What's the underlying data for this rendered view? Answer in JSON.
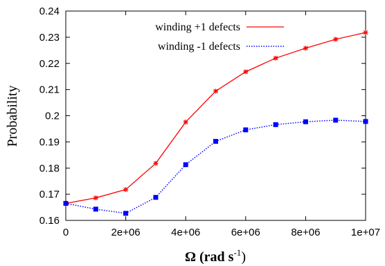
{
  "chart_data": {
    "type": "line",
    "xlabel": "Ω (rad s",
    "xlabel_superscript": "-1",
    "xlabel_suffix": ")",
    "ylabel": "Probability",
    "xlim": [
      0,
      10000000
    ],
    "ylim": [
      0.16,
      0.24
    ],
    "x_ticks": [
      {
        "value": 0,
        "label": "0"
      },
      {
        "value": 2000000,
        "label": "2e+06"
      },
      {
        "value": 4000000,
        "label": "4e+06"
      },
      {
        "value": 6000000,
        "label": "6e+06"
      },
      {
        "value": 8000000,
        "label": "8e+06"
      },
      {
        "value": 10000000,
        "label": "1e+07"
      }
    ],
    "y_ticks": [
      {
        "value": 0.16,
        "label": "0.16"
      },
      {
        "value": 0.17,
        "label": "0.17"
      },
      {
        "value": 0.18,
        "label": "0.18"
      },
      {
        "value": 0.19,
        "label": "0.19"
      },
      {
        "value": 0.2,
        "label": "0.2"
      },
      {
        "value": 0.21,
        "label": "0.21"
      },
      {
        "value": 0.22,
        "label": "0.22"
      },
      {
        "value": 0.23,
        "label": "0.23"
      },
      {
        "value": 0.24,
        "label": "0.24"
      }
    ],
    "grid": false,
    "legend_position": "top-center",
    "x": [
      0,
      1000000,
      2000000,
      3000000,
      4000000,
      5000000,
      6000000,
      7000000,
      8000000,
      9000000,
      10000000
    ],
    "series": [
      {
        "name": "winding +1 defects",
        "color": "#ff0000",
        "line_style": "solid",
        "marker": "star",
        "values": [
          0.1665,
          0.1686,
          0.1718,
          0.1818,
          0.1976,
          0.2094,
          0.2168,
          0.222,
          0.2258,
          0.2292,
          0.2318
        ]
      },
      {
        "name": "winding -1 defects",
        "color": "#0000ff",
        "line_style": "dotted",
        "marker": "filled-square",
        "values": [
          0.1665,
          0.1643,
          0.1627,
          0.1688,
          0.1813,
          0.1902,
          0.1946,
          0.1966,
          0.1977,
          0.1983,
          0.1978
        ]
      }
    ]
  }
}
